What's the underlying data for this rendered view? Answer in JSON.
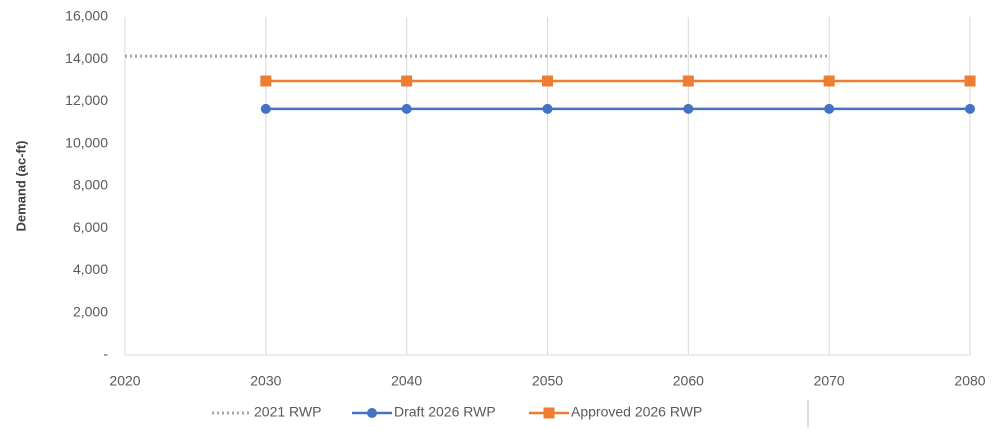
{
  "chart_data": {
    "type": "line",
    "y_label": "Demand (ac-ft)",
    "x": [
      2020,
      2030,
      2040,
      2050,
      2060,
      2070,
      2080
    ],
    "xlim": [
      2020,
      2080
    ],
    "xticks": [
      2020,
      2030,
      2040,
      2050,
      2060,
      2070,
      2080
    ],
    "ylim": [
      0,
      16000
    ],
    "yticks": [
      {
        "value": 0,
        "label": "-"
      },
      {
        "value": 2000,
        "label": "2,000"
      },
      {
        "value": 4000,
        "label": "4,000"
      },
      {
        "value": 6000,
        "label": "6,000"
      },
      {
        "value": 8000,
        "label": "8,000"
      },
      {
        "value": 10000,
        "label": "10,000"
      },
      {
        "value": 12000,
        "label": "12,000"
      },
      {
        "value": 14000,
        "label": "14,000"
      },
      {
        "value": 16000,
        "label": "16,000"
      }
    ],
    "grid": "x",
    "legend": "bottom",
    "series": [
      {
        "name": "2021 RWP",
        "color": "#a5a5a5",
        "style": "dotted",
        "marker": "none",
        "values": [
          14150,
          14150,
          14150,
          14150,
          14150,
          14150,
          null
        ]
      },
      {
        "name": "Draft 2026 RWP",
        "color": "#4472c4",
        "style": "solid",
        "marker": "circle",
        "values": [
          null,
          11650,
          11650,
          11650,
          11650,
          11650,
          11650
        ]
      },
      {
        "name": "Approved 2026 RWP",
        "color": "#ed7d31",
        "style": "solid",
        "marker": "square",
        "values": [
          null,
          12970,
          12970,
          12970,
          12970,
          12970,
          12970
        ]
      }
    ]
  }
}
